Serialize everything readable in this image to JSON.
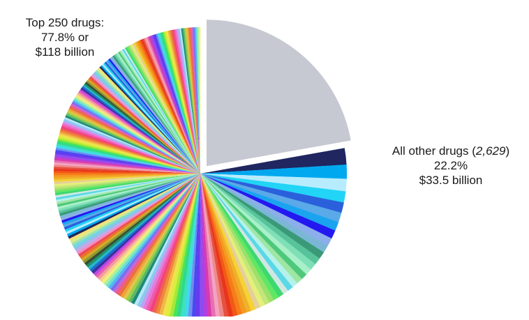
{
  "chart_data": {
    "type": "pie",
    "top250": {
      "title": "Top 250 drugs:",
      "percent_text": "77.8% or",
      "amount_text": "$118 billion",
      "share": 0.778,
      "slice_count": 250,
      "value_billion": 118
    },
    "other": {
      "name_prefix": "All other drugs (",
      "count_text": "2,629",
      "name_suffix": ")",
      "percent_text": "22.2%",
      "amount_text": "$33.5 billion",
      "share": 0.222,
      "drug_count": 2629,
      "value_billion": 33.5,
      "exploded": true,
      "color": "#c6c9d1"
    },
    "slice_colors": [
      "#1f2660",
      "#00a8ef",
      "#b7ecff",
      "#22d4f5",
      "#2b60dc",
      "#5aa9e8",
      "#1aa4f0",
      "#2418f0",
      "#8caeea",
      "#7ab7d6",
      "#3a9a78",
      "#58c39a",
      "#7fe0b8",
      "#a9f0c8",
      "#4fc87c",
      "#9ee6a4",
      "#b6f2ea",
      "#5ad8e8",
      "#cfe8e2",
      "#3fd870",
      "#5ee864",
      "#9be06a",
      "#c4e678",
      "#e4f07a",
      "#e6cf9a",
      "#f5d236",
      "#f0b12a",
      "#f39a1f",
      "#f77c1a",
      "#f25a14",
      "#e8341e",
      "#e6503e",
      "#ef8a8a",
      "#f4a2c4",
      "#e96fb0",
      "#d63ab0",
      "#b23ee0",
      "#8a4ef0",
      "#6a38f0",
      "#4a48f0",
      "#6f8ef0",
      "#40d8f0",
      "#3fe0c0",
      "#2fd890",
      "#48e45a",
      "#a6e83a",
      "#d6ee40",
      "#f2e24a",
      "#f0b848",
      "#ef8a3a",
      "#f0634a",
      "#f2427c",
      "#f05aa8",
      "#e878d8",
      "#c0a0f0",
      "#8acbf0",
      "#b8e8f8",
      "#1e8a78",
      "#5db868",
      "#9bd048",
      "#e0c64a",
      "#f0a03c",
      "#e5733c",
      "#f45a86",
      "#c16ad8",
      "#7d6cf0",
      "#54b4f0",
      "#6ce0d4",
      "#a8f0a0",
      "#f2f07a",
      "#f7cf90",
      "#f39aa0",
      "#eb5fb0",
      "#b848e8",
      "#3e2f9c",
      "#1b6fd0",
      "#2bb5c8",
      "#1d9468",
      "#3a4a34",
      "#8c9a30",
      "#d8a828",
      "#e87328",
      "#f0485a",
      "#f090c0",
      "#c8a8e8",
      "#90c0ec",
      "#70d8e0",
      "#a0e0b0",
      "#d8ec90",
      "#f6e070"
    ]
  }
}
